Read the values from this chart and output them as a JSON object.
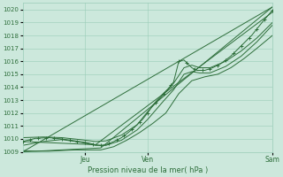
{
  "xlabel": "Pression niveau de la mer( hPa )",
  "ylim": [
    1009.0,
    1020.5
  ],
  "xlim": [
    0,
    96
  ],
  "yticks": [
    1009,
    1010,
    1011,
    1012,
    1013,
    1014,
    1015,
    1016,
    1017,
    1018,
    1019,
    1020
  ],
  "xtick_positions": [
    24,
    48,
    96
  ],
  "xtick_labels": [
    "Jeu",
    "Ven",
    "Sam"
  ],
  "bg_color": "#cce8dc",
  "grid_color": "#99ccb8",
  "line_color": "#2d6e3a",
  "font_color": "#2d6e3a",
  "figsize": [
    3.2,
    2.0
  ],
  "dpi": 100
}
